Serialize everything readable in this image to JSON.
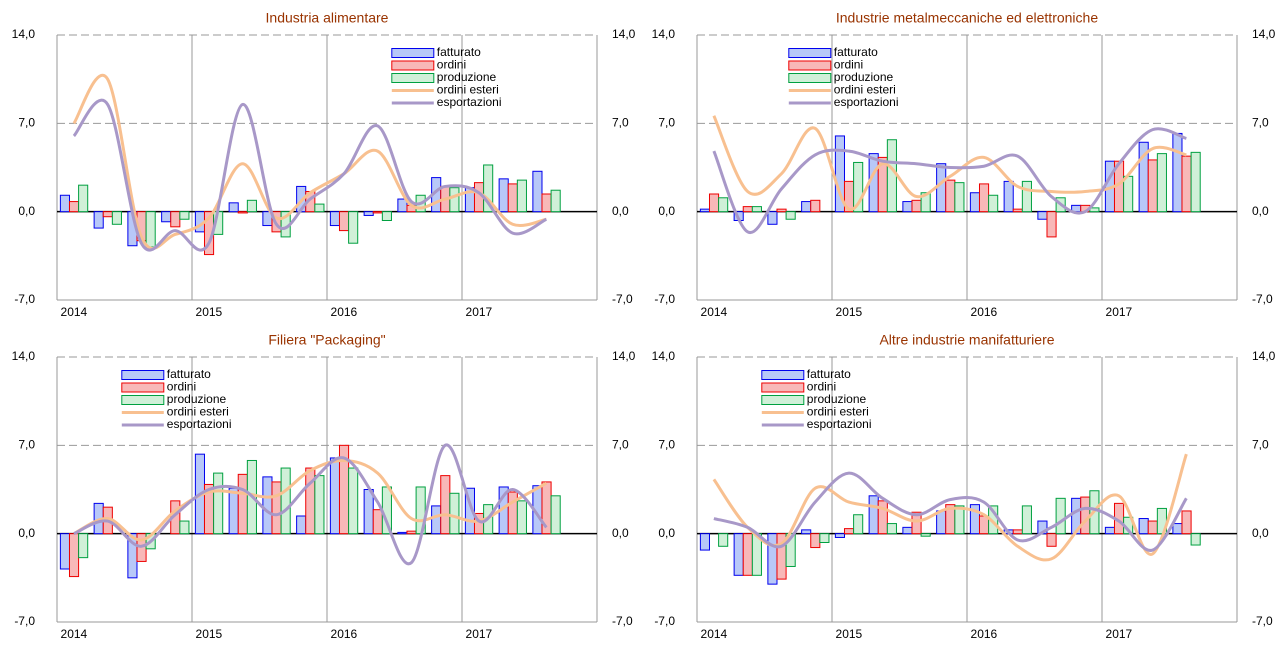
{
  "chart_data": [
    {
      "type": "bar",
      "title": "Industria alimentare",
      "legend": "upper right",
      "categories": [
        "2014",
        null,
        null,
        null,
        "2015",
        null,
        null,
        null,
        "2016",
        null,
        null,
        null,
        "2017",
        null,
        null
      ],
      "ylim": [
        -7,
        14
      ],
      "yticks": [
        {
          "value": -7,
          "label": "-7,0"
        },
        {
          "value": 0,
          "label": "0,0"
        },
        {
          "value": 7,
          "label": "7,0"
        },
        {
          "value": 14,
          "label": "14,0"
        }
      ],
      "series": [
        {
          "name": "fatturato",
          "kind": "bar",
          "color": "#0000ee",
          "fill": "#b8c8f8",
          "values": [
            1.3,
            -1.3,
            -2.7,
            -0.8,
            -1.6,
            0.7,
            -1.1,
            2.0,
            -1.1,
            -0.3,
            1.0,
            2.7,
            1.9,
            2.6,
            3.2
          ]
        },
        {
          "name": "ordini",
          "kind": "bar",
          "color": "#ee0000",
          "fill": "#f8b8b8",
          "values": [
            0.8,
            -0.4,
            -2.3,
            -1.2,
            -3.4,
            -0.1,
            -1.6,
            1.6,
            -1.5,
            -0.1,
            0.5,
            2.0,
            2.3,
            2.2,
            1.4
          ]
        },
        {
          "name": "produzione",
          "kind": "bar",
          "color": "#00a040",
          "fill": "#d0f0d8",
          "values": [
            2.1,
            -1.0,
            -2.8,
            -0.6,
            -1.8,
            0.9,
            -2.0,
            0.6,
            -2.5,
            -0.7,
            1.3,
            1.9,
            3.7,
            2.5,
            1.7
          ]
        },
        {
          "name": "ordini esteri",
          "kind": "line",
          "color": "#f8c090",
          "values": [
            7.0,
            10.5,
            -2.0,
            -1.8,
            -0.5,
            3.8,
            -0.5,
            1.5,
            3.0,
            4.8,
            0.5,
            1.0,
            1.5,
            -1.0,
            -0.6
          ]
        },
        {
          "name": "esportazioni",
          "kind": "line",
          "color": "#a898c8",
          "values": [
            6.0,
            8.5,
            -2.5,
            -1.5,
            -2.5,
            8.5,
            -1.0,
            1.0,
            3.0,
            6.8,
            0.8,
            2.0,
            1.5,
            -1.7,
            -0.6
          ]
        }
      ]
    },
    {
      "type": "bar",
      "title": "Industrie metalmeccaniche ed elettroniche",
      "legend": "upper center",
      "categories": [
        "2014",
        null,
        null,
        null,
        "2015",
        null,
        null,
        null,
        "2016",
        null,
        null,
        null,
        "2017",
        null,
        null
      ],
      "ylim": [
        -7,
        14
      ],
      "yticks": [
        {
          "value": -7,
          "label": "-7,0"
        },
        {
          "value": 0,
          "label": "0,0"
        },
        {
          "value": 7,
          "label": "7,0"
        },
        {
          "value": 14,
          "label": "14,0"
        }
      ],
      "series": [
        {
          "name": "fatturato",
          "kind": "bar",
          "color": "#0000ee",
          "fill": "#b8c8f8",
          "values": [
            0.2,
            -0.7,
            -1.0,
            0.8,
            6.0,
            4.6,
            0.8,
            3.8,
            1.5,
            2.4,
            -0.6,
            0.5,
            4.0,
            5.5,
            6.2
          ]
        },
        {
          "name": "ordini",
          "kind": "bar",
          "color": "#ee0000",
          "fill": "#f8b8b8",
          "values": [
            1.4,
            0.4,
            0.2,
            0.9,
            2.4,
            4.3,
            0.9,
            2.5,
            2.2,
            0.2,
            -2.0,
            0.5,
            4.0,
            4.1,
            4.4
          ]
        },
        {
          "name": "produzione",
          "kind": "bar",
          "color": "#00a040",
          "fill": "#d0f0d8",
          "values": [
            1.1,
            0.4,
            -0.6,
            0.0,
            3.9,
            5.7,
            1.5,
            2.3,
            1.3,
            2.4,
            1.1,
            0.3,
            2.8,
            4.6,
            4.7
          ]
        },
        {
          "name": "ordini esteri",
          "kind": "line",
          "color": "#f8c090",
          "values": [
            7.6,
            1.6,
            3.0,
            6.6,
            0.2,
            3.8,
            1.2,
            2.8,
            4.3,
            2.0,
            1.6,
            1.6,
            2.2,
            5.0,
            4.5
          ]
        },
        {
          "name": "esportazioni",
          "kind": "line",
          "color": "#a898c8",
          "values": [
            4.8,
            -1.6,
            1.8,
            4.5,
            4.8,
            4.0,
            3.8,
            3.5,
            3.6,
            4.4,
            1.2,
            0.0,
            3.8,
            6.5,
            5.8
          ]
        }
      ]
    },
    {
      "type": "bar",
      "title": "Filiera \"Packaging\"",
      "legend": "upper left",
      "categories": [
        "2014",
        null,
        null,
        null,
        "2015",
        null,
        null,
        null,
        "2016",
        null,
        null,
        null,
        "2017",
        null,
        null
      ],
      "ylim": [
        -7,
        14
      ],
      "yticks": [
        {
          "value": -7,
          "label": "-7,0"
        },
        {
          "value": 0,
          "label": "0,0"
        },
        {
          "value": 7,
          "label": "7,0"
        },
        {
          "value": 14,
          "label": "14,0"
        }
      ],
      "series": [
        {
          "name": "fatturato",
          "kind": "bar",
          "color": "#0000ee",
          "fill": "#b8c8f8",
          "values": [
            -2.8,
            2.4,
            -3.5,
            0.0,
            6.3,
            3.6,
            4.5,
            1.4,
            6.0,
            3.5,
            0.1,
            2.2,
            3.6,
            3.7,
            3.8
          ]
        },
        {
          "name": "ordini",
          "kind": "bar",
          "color": "#ee0000",
          "fill": "#f8b8b8",
          "values": [
            -3.4,
            2.1,
            -2.2,
            2.6,
            3.9,
            4.7,
            4.1,
            5.2,
            7.0,
            1.9,
            0.2,
            4.6,
            1.6,
            3.3,
            4.1
          ]
        },
        {
          "name": "produzione",
          "kind": "bar",
          "color": "#00a040",
          "fill": "#d0f0d8",
          "values": [
            -1.9,
            0.0,
            -1.2,
            1.0,
            4.8,
            5.8,
            5.2,
            4.6,
            5.2,
            3.7,
            3.7,
            3.2,
            2.3,
            2.6,
            3.0
          ]
        },
        {
          "name": "ordini esteri",
          "kind": "line",
          "color": "#f8c090",
          "values": [
            0.0,
            1.2,
            -0.5,
            1.8,
            3.3,
            3.2,
            3.0,
            5.0,
            5.8,
            4.8,
            1.2,
            1.5,
            1.0,
            2.5,
            4.0
          ]
        },
        {
          "name": "esportazioni",
          "kind": "line",
          "color": "#a898c8",
          "values": [
            0.0,
            1.0,
            -1.0,
            1.5,
            3.5,
            3.5,
            1.5,
            4.0,
            6.0,
            2.5,
            -2.3,
            7.0,
            1.0,
            3.5,
            0.5
          ]
        }
      ]
    },
    {
      "type": "bar",
      "title": "Altre industrie manifatturiere",
      "legend": "upper left",
      "categories": [
        "2014",
        null,
        null,
        null,
        "2015",
        null,
        null,
        null,
        "2016",
        null,
        null,
        null,
        "2017",
        null,
        null
      ],
      "ylim": [
        -7,
        14
      ],
      "yticks": [
        {
          "value": -7,
          "label": "-7,0"
        },
        {
          "value": 0,
          "label": "0,0"
        },
        {
          "value": 7,
          "label": "7,0"
        },
        {
          "value": 14,
          "label": "14,0"
        }
      ],
      "series": [
        {
          "name": "fatturato",
          "kind": "bar",
          "color": "#0000ee",
          "fill": "#b8c8f8",
          "values": [
            -1.3,
            -3.3,
            -4.0,
            0.3,
            -0.3,
            3.0,
            0.5,
            1.8,
            2.3,
            0.3,
            1.0,
            2.8,
            0.5,
            1.2,
            0.8
          ]
        },
        {
          "name": "ordini",
          "kind": "bar",
          "color": "#ee0000",
          "fill": "#f8b8b8",
          "values": [
            0.0,
            -3.3,
            -3.6,
            -1.1,
            0.4,
            2.6,
            1.7,
            2.3,
            1.4,
            0.3,
            -1.0,
            2.9,
            2.4,
            1.0,
            1.8
          ]
        },
        {
          "name": "produzione",
          "kind": "bar",
          "color": "#00a040",
          "fill": "#d0f0d8",
          "values": [
            -1.0,
            -3.3,
            -2.6,
            -0.7,
            1.5,
            0.8,
            -0.2,
            2.2,
            2.2,
            2.2,
            2.8,
            3.4,
            1.3,
            2.0,
            -0.9
          ]
        },
        {
          "name": "ordini esteri",
          "kind": "line",
          "color": "#f8c090",
          "values": [
            4.3,
            0.5,
            -0.8,
            3.6,
            2.5,
            2.0,
            1.0,
            2.0,
            1.5,
            -1.0,
            -2.0,
            1.0,
            3.0,
            -1.6,
            6.3
          ]
        },
        {
          "name": "esportazioni",
          "kind": "line",
          "color": "#a898c8",
          "values": [
            1.2,
            0.5,
            -1.0,
            2.5,
            4.8,
            2.8,
            1.5,
            2.7,
            2.5,
            -0.5,
            0.5,
            2.0,
            1.0,
            -1.3,
            2.8
          ]
        }
      ]
    }
  ]
}
